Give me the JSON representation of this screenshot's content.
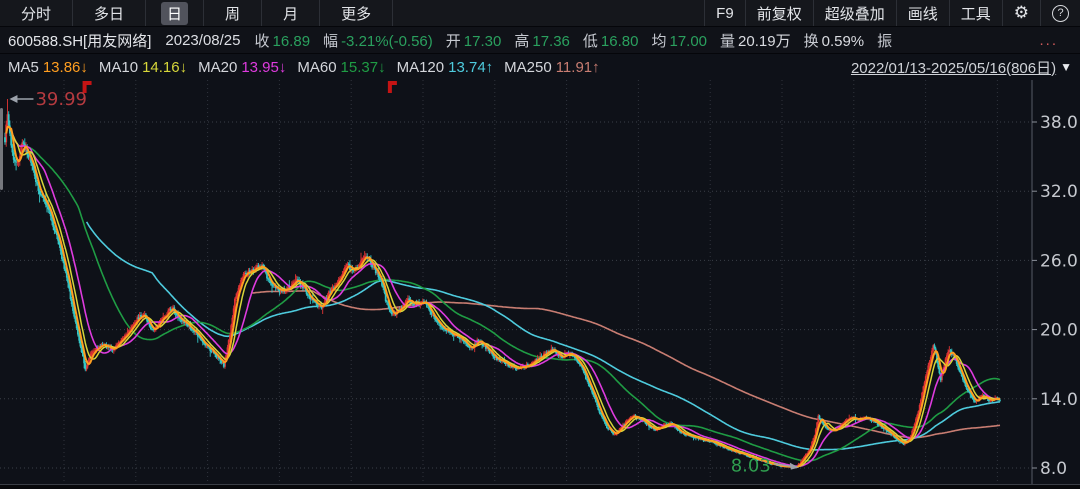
{
  "toolbar": {
    "tabs": [
      {
        "label": "分时",
        "active": false
      },
      {
        "label": "多日",
        "active": false
      },
      {
        "label": "日",
        "active": true
      },
      {
        "label": "周",
        "active": false
      },
      {
        "label": "月",
        "active": false
      },
      {
        "label": "更多",
        "active": false
      }
    ],
    "right_buttons": [
      "F9",
      "前复权",
      "超级叠加",
      "画线",
      "工具"
    ],
    "gear_icon": "⚙",
    "help_icon": "?"
  },
  "quote_bar": {
    "symbol": "600588.SH[用友网络]",
    "date": "2023/08/25",
    "fields": [
      {
        "label": "收",
        "value": "16.89",
        "color": "green"
      },
      {
        "label": "幅",
        "value": "-3.21%(-0.56)",
        "color": "green"
      },
      {
        "label": "开",
        "value": "17.30",
        "color": "green"
      },
      {
        "label": "高",
        "value": "17.36",
        "color": "green"
      },
      {
        "label": "低",
        "value": "16.80",
        "color": "green"
      },
      {
        "label": "均",
        "value": "17.00",
        "color": "green"
      },
      {
        "label": "量",
        "value": "20.19万",
        "color": "white"
      },
      {
        "label": "换",
        "value": "0.59%",
        "color": "white"
      },
      {
        "label": "振",
        "value": "",
        "color": "white"
      }
    ],
    "overflow": "..."
  },
  "ma_bar": {
    "items": [
      {
        "label": "MA5",
        "value": "13.86",
        "arrow": "↓",
        "color": "#ff9e20"
      },
      {
        "label": "MA10",
        "value": "14.16",
        "arrow": "↓",
        "color": "#d7d73a"
      },
      {
        "label": "MA20",
        "value": "13.95",
        "arrow": "↓",
        "color": "#de3bde"
      },
      {
        "label": "MA60",
        "value": "15.37",
        "arrow": "↓",
        "color": "#1f9c44"
      },
      {
        "label": "MA120",
        "value": "13.74",
        "arrow": "↑",
        "color": "#4ecbdd"
      },
      {
        "label": "MA250",
        "value": "11.91",
        "arrow": "↑",
        "color": "#c87d72"
      }
    ],
    "range": "2022/01/13-2025/05/16(806日)",
    "dropdown_icon": "▼"
  },
  "chart_data": {
    "type": "candlestick",
    "title": "600588.SH 用友网络 日K (前复权)",
    "x_range": [
      "2022/01/13",
      "2025/05/16"
    ],
    "bars_count": 806,
    "y_ticks": [
      38.0,
      32.0,
      26.0,
      20.0,
      14.0,
      8.0
    ],
    "ylim": [
      7.6,
      41.0
    ],
    "grid": true,
    "up_color": "#e03434",
    "down_color": "#35c8c8",
    "annotations": [
      {
        "type": "period_high",
        "text": "39.99",
        "value": 39.99,
        "day": 2,
        "color": "#b43a3f"
      },
      {
        "type": "period_low",
        "text": "8.03",
        "value": 8.03,
        "day": 639,
        "color": "#2f9e4f"
      }
    ],
    "event_marker_days": [
      66,
      313
    ],
    "close_path": [
      [
        0,
        36.5
      ],
      [
        2,
        38.6
      ],
      [
        6,
        35.2
      ],
      [
        10,
        34.3
      ],
      [
        14,
        36.2
      ],
      [
        20,
        34.8
      ],
      [
        28,
        31.8
      ],
      [
        36,
        30.2
      ],
      [
        42,
        28.0
      ],
      [
        50,
        24.5
      ],
      [
        58,
        20.0
      ],
      [
        65,
        16.6
      ],
      [
        70,
        18.0
      ],
      [
        78,
        18.7
      ],
      [
        88,
        18.3
      ],
      [
        98,
        19.6
      ],
      [
        106,
        20.8
      ],
      [
        112,
        21.4
      ],
      [
        119,
        19.9
      ],
      [
        127,
        20.9
      ],
      [
        135,
        21.9
      ],
      [
        142,
        20.9
      ],
      [
        150,
        20.2
      ],
      [
        158,
        19.2
      ],
      [
        170,
        17.8
      ],
      [
        177,
        16.9
      ],
      [
        182,
        19.5
      ],
      [
        186,
        22.6
      ],
      [
        192,
        24.6
      ],
      [
        200,
        25.2
      ],
      [
        208,
        25.6
      ],
      [
        214,
        24.1
      ],
      [
        222,
        23.3
      ],
      [
        230,
        23.6
      ],
      [
        236,
        24.4
      ],
      [
        243,
        23.4
      ],
      [
        250,
        22.3
      ],
      [
        256,
        21.9
      ],
      [
        262,
        23.2
      ],
      [
        270,
        24.3
      ],
      [
        276,
        25.7
      ],
      [
        281,
        25.1
      ],
      [
        288,
        25.8
      ],
      [
        292,
        26.5
      ],
      [
        298,
        25.4
      ],
      [
        304,
        24.3
      ],
      [
        308,
        22.6
      ],
      [
        314,
        21.2
      ],
      [
        320,
        21.8
      ],
      [
        326,
        22.6
      ],
      [
        333,
        22.2
      ],
      [
        340,
        22.4
      ],
      [
        347,
        21.0
      ],
      [
        354,
        20.2
      ],
      [
        362,
        19.6
      ],
      [
        370,
        19.1
      ],
      [
        377,
        18.4
      ],
      [
        383,
        19.1
      ],
      [
        390,
        18.3
      ],
      [
        398,
        17.4
      ],
      [
        406,
        17.0
      ],
      [
        414,
        16.6
      ],
      [
        422,
        16.9
      ],
      [
        430,
        17.4
      ],
      [
        437,
        17.9
      ],
      [
        443,
        18.3
      ],
      [
        450,
        17.6
      ],
      [
        456,
        17.9
      ],
      [
        461,
        17.5
      ],
      [
        466,
        16.8
      ],
      [
        471,
        15.6
      ],
      [
        476,
        14.2
      ],
      [
        481,
        12.8
      ],
      [
        487,
        11.5
      ],
      [
        493,
        10.9
      ],
      [
        498,
        11.4
      ],
      [
        503,
        12.1
      ],
      [
        509,
        12.5
      ],
      [
        515,
        12.2
      ],
      [
        521,
        11.6
      ],
      [
        527,
        11.3
      ],
      [
        533,
        11.7
      ],
      [
        539,
        11.9
      ],
      [
        545,
        11.2
      ],
      [
        551,
        10.9
      ],
      [
        557,
        10.7
      ],
      [
        563,
        10.5
      ],
      [
        570,
        10.3
      ],
      [
        577,
        10.0
      ],
      [
        584,
        9.7
      ],
      [
        591,
        9.4
      ],
      [
        598,
        9.2
      ],
      [
        605,
        8.9
      ],
      [
        612,
        8.6
      ],
      [
        619,
        8.4
      ],
      [
        626,
        8.2
      ],
      [
        632,
        8.1
      ],
      [
        639,
        8.05
      ],
      [
        643,
        8.4
      ],
      [
        647,
        9.0
      ],
      [
        651,
        9.6
      ],
      [
        655,
        10.8
      ],
      [
        658,
        12.5
      ],
      [
        661,
        12.0
      ],
      [
        665,
        11.4
      ],
      [
        670,
        11.2
      ],
      [
        675,
        11.6
      ],
      [
        680,
        12.1
      ],
      [
        685,
        12.5
      ],
      [
        690,
        12.1
      ],
      [
        695,
        12.4
      ],
      [
        700,
        12.2
      ],
      [
        705,
        11.9
      ],
      [
        710,
        11.5
      ],
      [
        715,
        11.1
      ],
      [
        719,
        10.7
      ],
      [
        723,
        10.4
      ],
      [
        727,
        10.1
      ],
      [
        731,
        10.4
      ],
      [
        734,
        11.2
      ],
      [
        737,
        12.2
      ],
      [
        740,
        13.4
      ],
      [
        743,
        15.0
      ],
      [
        746,
        16.4
      ],
      [
        749,
        17.6
      ],
      [
        751,
        18.6
      ],
      [
        753,
        17.9
      ],
      [
        755,
        16.6
      ],
      [
        757,
        15.7
      ],
      [
        759,
        16.6
      ],
      [
        761,
        17.6
      ],
      [
        763,
        18.2
      ],
      [
        766,
        17.9
      ],
      [
        769,
        17.4
      ],
      [
        772,
        16.5
      ],
      [
        775,
        15.7
      ],
      [
        778,
        14.9
      ],
      [
        781,
        14.3
      ],
      [
        784,
        13.8
      ],
      [
        787,
        13.9
      ],
      [
        790,
        14.3
      ],
      [
        793,
        14.1
      ],
      [
        796,
        13.8
      ],
      [
        799,
        13.9
      ],
      [
        802,
        14.0
      ],
      [
        805,
        13.85
      ]
    ],
    "ma_series": [
      {
        "name": "MA5",
        "window": 5,
        "start": 1,
        "color": "#ff9e20",
        "width": 2.0
      },
      {
        "name": "MA10",
        "window": 10,
        "start": 2,
        "color": "#d7d73a",
        "width": 1.5
      },
      {
        "name": "MA20",
        "window": 20,
        "start": 3,
        "color": "#de3bde",
        "width": 1.6
      },
      {
        "name": "MA60",
        "window": 60,
        "start": 3,
        "color": "#1f9c44",
        "width": 1.6
      },
      {
        "name": "MA120",
        "window": 120,
        "start": 66,
        "color": "#4ecbdd",
        "width": 1.6
      },
      {
        "name": "MA250",
        "window": 250,
        "start": 200,
        "color": "#c87d72",
        "width": 1.6
      }
    ],
    "legend_position": "top-left-bar"
  }
}
